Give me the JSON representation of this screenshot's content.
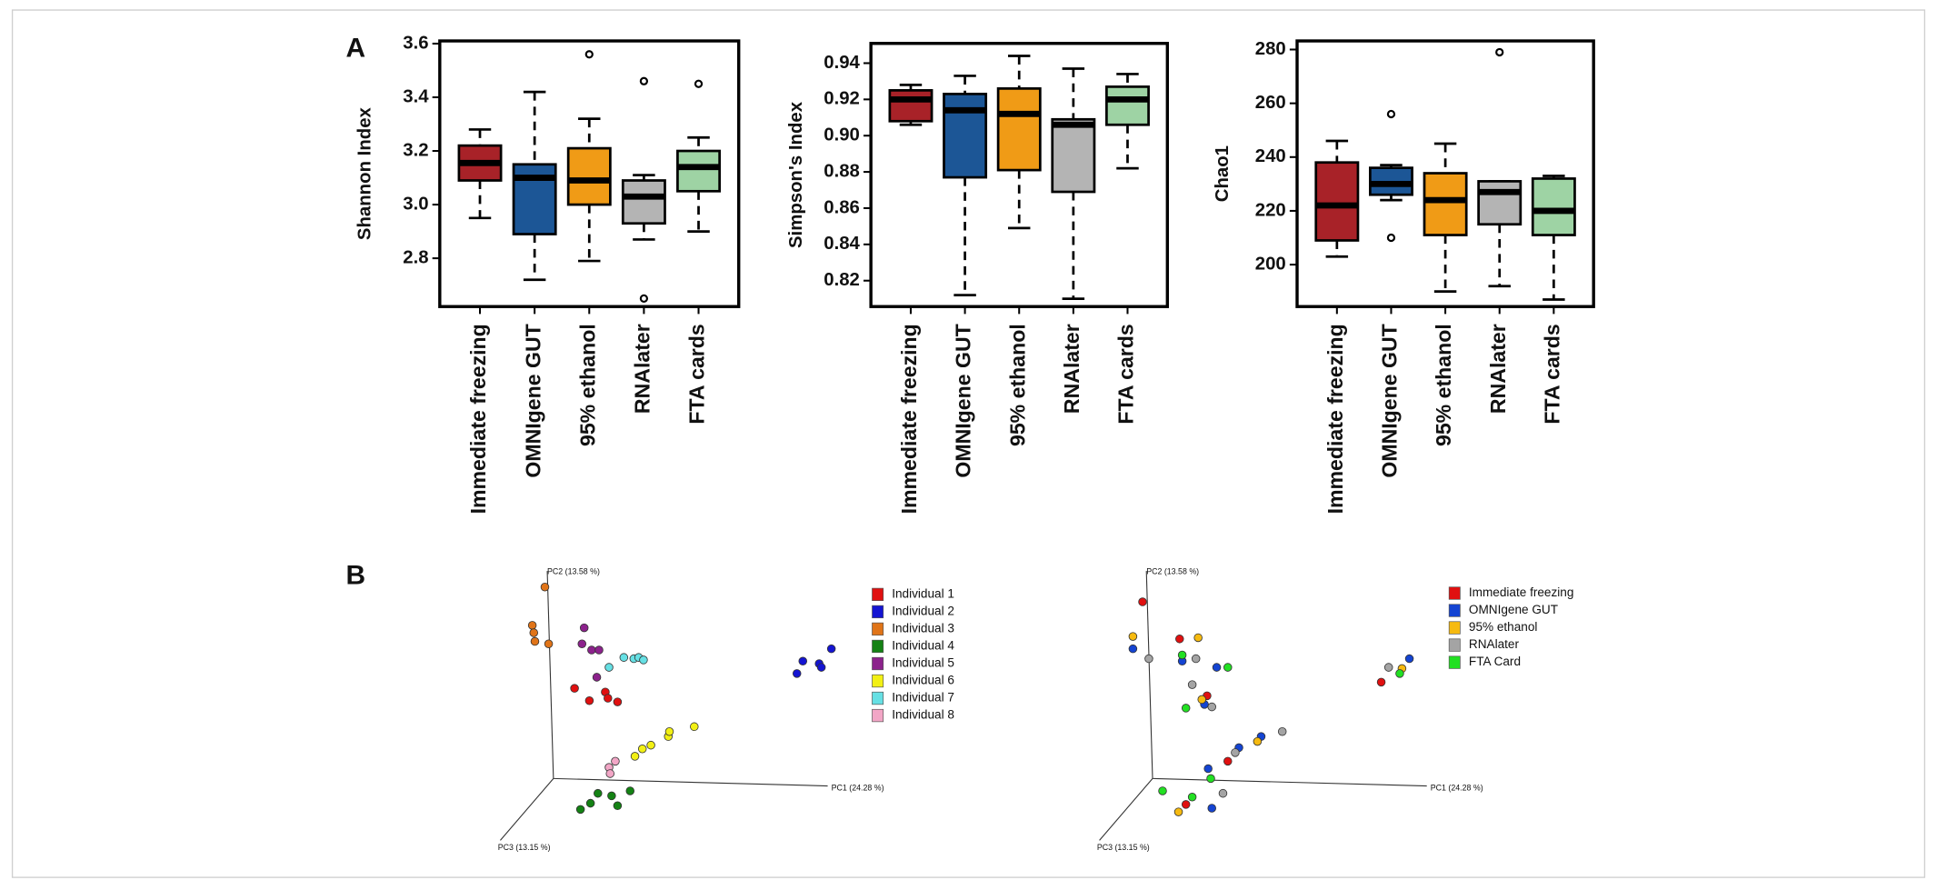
{
  "panel_labels": [
    "A",
    "B"
  ],
  "chart_data": [
    {
      "type": "box",
      "ylabel": "Shannon Index",
      "categories": [
        "Immediate freezing",
        "OMNIgene GUT",
        "95% ethanol",
        "RNAlater",
        "FTA cards"
      ],
      "colors": [
        "#a82228",
        "#1c5696",
        "#f09b16",
        "#b4b4b4",
        "#9ed3a4"
      ],
      "whisker_low": [
        2.95,
        2.72,
        2.79,
        2.87,
        2.9
      ],
      "q1": [
        3.09,
        2.89,
        3.0,
        2.93,
        3.05
      ],
      "median": [
        3.155,
        3.1,
        3.09,
        3.03,
        3.14
      ],
      "q3": [
        3.22,
        3.15,
        3.21,
        3.09,
        3.2
      ],
      "whisker_high": [
        3.28,
        3.42,
        3.32,
        3.11,
        3.25
      ],
      "outliers": [
        [],
        [],
        [
          3.56
        ],
        [
          3.46,
          2.65
        ],
        [
          3.45
        ]
      ],
      "ylim": [
        2.62,
        3.61
      ],
      "yticks": [
        {
          "value": 2.8,
          "label": "2.8"
        },
        {
          "value": 3.0,
          "label": "3.0"
        },
        {
          "value": 3.2,
          "label": "3.2"
        },
        {
          "value": 3.4,
          "label": "3.4"
        },
        {
          "value": 3.6,
          "label": "3.6"
        }
      ]
    },
    {
      "type": "box",
      "ylabel": "Simpson's Index",
      "categories": [
        "Immediate freezing",
        "OMNIgene GUT",
        "95% ethanol",
        "RNAlater",
        "FTA cards"
      ],
      "colors": [
        "#a82228",
        "#1c5696",
        "#f09b16",
        "#b4b4b4",
        "#9ed3a4"
      ],
      "whisker_low": [
        0.906,
        0.812,
        0.849,
        0.81,
        0.882
      ],
      "q1": [
        0.908,
        0.877,
        0.881,
        0.869,
        0.906
      ],
      "median": [
        0.92,
        0.914,
        0.912,
        0.906,
        0.92
      ],
      "q3": [
        0.925,
        0.923,
        0.926,
        0.909,
        0.927
      ],
      "whisker_high": [
        0.928,
        0.933,
        0.944,
        0.937,
        0.934
      ],
      "outliers": [
        [],
        [],
        [],
        [],
        []
      ],
      "ylim": [
        0.8057,
        0.9509
      ],
      "yticks": [
        0.82,
        0.84,
        0.86,
        0.88,
        {
          "value": 0.9,
          "label": "0.90"
        },
        0.92,
        0.94
      ]
    },
    {
      "type": "box",
      "ylabel": "Chao1",
      "categories": [
        "Immediate freezing",
        "OMNIgene GUT",
        "95% ethanol",
        "RNAlater",
        "FTA cards"
      ],
      "colors": [
        "#a82228",
        "#1c5696",
        "#f09b16",
        "#b4b4b4",
        "#9ed3a4"
      ],
      "whisker_low": [
        203,
        224,
        190,
        192,
        187
      ],
      "q1": [
        209,
        226,
        211,
        215,
        211
      ],
      "median": [
        222,
        230,
        224,
        227,
        220
      ],
      "q3": [
        238,
        236,
        234,
        231,
        232
      ],
      "whisker_high": [
        246,
        237,
        245,
        231,
        233
      ],
      "outliers": [
        [],
        [
          256,
          210
        ],
        [],
        [
          279
        ],
        []
      ],
      "ylim": [
        184.4,
        283.2
      ],
      "yticks": [
        200,
        220,
        240,
        260,
        280
      ]
    },
    {
      "type": "pcoa",
      "xlabel": "PC1 (24.28 %)",
      "ylabel": "PC2 (13.58 %)",
      "zlabel": "PC3 (13.15 %)",
      "xlim": [
        0,
        100
      ],
      "ylim": [
        0,
        100
      ],
      "series": [
        {
          "name": "Individual 1",
          "color": "#e01010",
          "x": [
            21.7,
            25.7,
            30,
            30.7,
            33.3
          ],
          "y": [
            53.2,
            49.2,
            52,
            50,
            48.8
          ]
        },
        {
          "name": "Individual 2",
          "color": "#1414d2",
          "x": [
            81.7,
            83.3,
            87.7,
            88.3,
            91
          ],
          "y": [
            58,
            62,
            61.2,
            60,
            66
          ]
        },
        {
          "name": "Individual 3",
          "color": "#e07418",
          "x": [
            13.7,
            10.3,
            10.7,
            11,
            14.7
          ],
          "y": [
            86,
            73.6,
            71.2,
            68.4,
            67.6
          ]
        },
        {
          "name": "Individual 4",
          "color": "#148214",
          "x": [
            23.3,
            26,
            28,
            31.7,
            33.3,
            36.7
          ],
          "y": [
            14,
            16,
            19.2,
            18.4,
            15.2,
            20
          ]
        },
        {
          "name": "Individual 5",
          "color": "#8c228c",
          "x": [
            24.3,
            23.7,
            26.3,
            28.3,
            27.7
          ],
          "y": [
            72.8,
            67.6,
            65.6,
            65.6,
            56.8
          ]
        },
        {
          "name": "Individual 6",
          "color": "#f2f014",
          "x": [
            38,
            40,
            42.3,
            47,
            47.3,
            54
          ],
          "y": [
            31.2,
            33.6,
            34.8,
            37.6,
            39.2,
            40.8
          ]
        },
        {
          "name": "Individual 7",
          "color": "#66e0e4",
          "x": [
            31,
            35,
            37.7,
            39,
            40.3
          ],
          "y": [
            60,
            63.2,
            62.8,
            63.2,
            62.4
          ]
        },
        {
          "name": "Individual 8",
          "color": "#f2a6c6",
          "x": [
            31,
            31.3,
            32.7
          ],
          "y": [
            27.6,
            25.6,
            29.6
          ]
        }
      ]
    },
    {
      "type": "pcoa",
      "xlabel": "PC1 (24.28 %)",
      "ylabel": "PC2 (13.58 %)",
      "zlabel": "PC3 (13.15 %)",
      "xlim": [
        0,
        100
      ],
      "ylim": [
        0,
        100
      ],
      "series": [
        {
          "name": "Immediate freezing",
          "color": "#e01010",
          "x": [
            13.3,
            23.3,
            30.7,
            36.3,
            25,
            77.7
          ],
          "y": [
            81.2,
            69.2,
            50.8,
            29.6,
            15.6,
            55.2
          ]
        },
        {
          "name": "OMNIgene GUT",
          "color": "#1444d2",
          "x": [
            10.7,
            24,
            33.3,
            30,
            45.3,
            39.3,
            31,
            32,
            85.3
          ],
          "y": [
            66,
            62,
            60,
            48,
            37.6,
            34,
            27.2,
            14.4,
            62.8
          ]
        },
        {
          "name": "95% ethanol",
          "color": "#f6ba10",
          "x": [
            10.7,
            28.3,
            29.3,
            44.3,
            23,
            83.3
          ],
          "y": [
            70,
            69.6,
            49.6,
            36,
            13.2,
            59.6
          ]
        },
        {
          "name": "RNAlater",
          "color": "#a4a4a4",
          "x": [
            15,
            27.7,
            26.7,
            32,
            51,
            38.3,
            35,
            79.7
          ],
          "y": [
            62.8,
            62.8,
            54.4,
            47.2,
            39.2,
            32.4,
            19.2,
            60
          ]
        },
        {
          "name": "FTA Card",
          "color": "#22e022",
          "x": [
            24,
            36.3,
            25,
            31.7,
            26.7,
            18.7,
            82.7
          ],
          "y": [
            64,
            60,
            46.8,
            24,
            18,
            20,
            58
          ]
        }
      ]
    }
  ]
}
